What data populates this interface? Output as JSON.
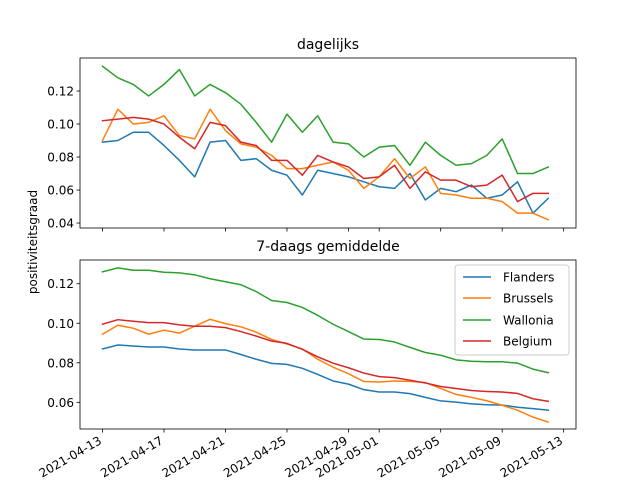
{
  "figure": {
    "ylabel": "positiviteitsgraad"
  },
  "chart_data": [
    {
      "type": "line",
      "title": "dagelijks",
      "xlabel": "",
      "ylabel": "",
      "x": [
        "2021-04-13",
        "2021-04-14",
        "2021-04-15",
        "2021-04-16",
        "2021-04-17",
        "2021-04-18",
        "2021-04-19",
        "2021-04-20",
        "2021-04-21",
        "2021-04-22",
        "2021-04-23",
        "2021-04-24",
        "2021-04-25",
        "2021-04-26",
        "2021-04-27",
        "2021-04-28",
        "2021-04-29",
        "2021-04-30",
        "2021-05-01",
        "2021-05-02",
        "2021-05-03",
        "2021-05-04",
        "2021-05-05",
        "2021-05-06",
        "2021-05-07",
        "2021-05-08",
        "2021-05-09",
        "2021-05-10",
        "2021-05-11",
        "2021-05-12"
      ],
      "ylim": [
        0.037,
        0.14
      ],
      "yticks": [
        0.04,
        0.06,
        0.08,
        0.1,
        0.12
      ],
      "ytick_labels": [
        "0.04",
        "0.06",
        "0.08",
        "0.10",
        "0.12"
      ],
      "grid": false,
      "series": [
        {
          "name": "Flanders",
          "color": "#1f77b4",
          "values": [
            0.089,
            0.09,
            0.095,
            0.095,
            0.087,
            0.078,
            0.068,
            0.089,
            0.09,
            0.078,
            0.079,
            0.072,
            0.069,
            0.057,
            0.072,
            0.07,
            0.068,
            0.065,
            0.062,
            0.061,
            0.07,
            0.054,
            0.061,
            0.059,
            0.063,
            0.055,
            0.057,
            0.065,
            0.046,
            0.055
          ]
        },
        {
          "name": "Brussels",
          "color": "#ff7f0e",
          "values": [
            0.09,
            0.109,
            0.1,
            0.101,
            0.105,
            0.093,
            0.091,
            0.109,
            0.096,
            0.088,
            0.086,
            0.081,
            0.073,
            0.073,
            0.075,
            0.077,
            0.072,
            0.061,
            0.068,
            0.079,
            0.067,
            0.074,
            0.058,
            0.057,
            0.055,
            0.055,
            0.053,
            0.046,
            0.046,
            0.042
          ]
        },
        {
          "name": "Wallonia",
          "color": "#2ca02c",
          "values": [
            0.135,
            0.128,
            0.124,
            0.117,
            0.124,
            0.133,
            0.117,
            0.124,
            0.119,
            0.112,
            0.101,
            0.089,
            0.106,
            0.095,
            0.105,
            0.089,
            0.088,
            0.08,
            0.086,
            0.087,
            0.075,
            0.089,
            0.081,
            0.075,
            0.076,
            0.081,
            0.091,
            0.07,
            0.07,
            0.074
          ]
        },
        {
          "name": "Belgium",
          "color": "#d62728",
          "values": [
            0.102,
            0.103,
            0.104,
            0.103,
            0.1,
            0.092,
            0.085,
            0.101,
            0.099,
            0.089,
            0.087,
            0.078,
            0.078,
            0.069,
            0.081,
            0.077,
            0.074,
            0.067,
            0.068,
            0.075,
            0.061,
            0.071,
            0.066,
            0.066,
            0.062,
            0.063,
            0.069,
            0.053,
            0.058,
            0.058
          ]
        }
      ]
    },
    {
      "type": "line",
      "title": "7-daags gemiddelde",
      "xlabel": "",
      "ylabel": "",
      "x": [
        "2021-04-13",
        "2021-04-14",
        "2021-04-15",
        "2021-04-16",
        "2021-04-17",
        "2021-04-18",
        "2021-04-19",
        "2021-04-20",
        "2021-04-21",
        "2021-04-22",
        "2021-04-23",
        "2021-04-24",
        "2021-04-25",
        "2021-04-26",
        "2021-04-27",
        "2021-04-28",
        "2021-04-29",
        "2021-04-30",
        "2021-05-01",
        "2021-05-02",
        "2021-05-03",
        "2021-05-04",
        "2021-05-05",
        "2021-05-06",
        "2021-05-07",
        "2021-05-08",
        "2021-05-09",
        "2021-05-10",
        "2021-05-11",
        "2021-05-12"
      ],
      "ylim": [
        0.0465,
        0.132
      ],
      "yticks": [
        0.06,
        0.08,
        0.1,
        0.12
      ],
      "ytick_labels": [
        "0.06",
        "0.08",
        "0.10",
        "0.12"
      ],
      "xticks": [
        "2021-04-13",
        "2021-04-17",
        "2021-04-21",
        "2021-04-25",
        "2021-04-29",
        "2021-05-01",
        "2021-05-05",
        "2021-05-09",
        "2021-05-13"
      ],
      "xtick_labels": [
        "2021-04-13",
        "2021-04-17",
        "2021-04-21",
        "2021-04-25",
        "2021-04-29",
        "2021-05-01",
        "2021-05-05",
        "2021-05-09",
        "2021-05-13"
      ],
      "legend": "upper right",
      "grid": false,
      "series": [
        {
          "name": "Flanders",
          "color": "#1f77b4",
          "values": [
            0.087,
            0.089,
            0.0885,
            0.088,
            0.088,
            0.087,
            0.0865,
            0.0865,
            0.0865,
            0.0842,
            0.0818,
            0.0797,
            0.0792,
            0.0772,
            0.0741,
            0.0708,
            0.0692,
            0.0664,
            0.0652,
            0.0652,
            0.0644,
            0.0625,
            0.0607,
            0.0601,
            0.0592,
            0.0588,
            0.0586,
            0.0575,
            0.0568,
            0.056
          ]
        },
        {
          "name": "Brussels",
          "color": "#ff7f0e",
          "values": [
            0.0945,
            0.099,
            0.0975,
            0.0945,
            0.0965,
            0.095,
            0.0985,
            0.102,
            0.0998,
            0.0982,
            0.0955,
            0.0918,
            0.0895,
            0.087,
            0.0818,
            0.0778,
            0.0745,
            0.0705,
            0.0703,
            0.0708,
            0.0706,
            0.07,
            0.067,
            0.064,
            0.0625,
            0.0608,
            0.0585,
            0.056,
            0.0525,
            0.05
          ]
        },
        {
          "name": "Wallonia",
          "color": "#2ca02c",
          "values": [
            0.126,
            0.128,
            0.1268,
            0.1268,
            0.1258,
            0.1255,
            0.1245,
            0.1225,
            0.121,
            0.1195,
            0.116,
            0.1115,
            0.1105,
            0.108,
            0.104,
            0.0995,
            0.0958,
            0.092,
            0.0918,
            0.0905,
            0.0878,
            0.0852,
            0.0838,
            0.0815,
            0.0808,
            0.0805,
            0.0805,
            0.0798,
            0.0768,
            0.075
          ]
        },
        {
          "name": "Belgium",
          "color": "#d62728",
          "values": [
            0.0995,
            0.1018,
            0.101,
            0.1003,
            0.1003,
            0.0992,
            0.0985,
            0.0985,
            0.0978,
            0.0958,
            0.0935,
            0.091,
            0.0898,
            0.0868,
            0.083,
            0.0798,
            0.0775,
            0.0748,
            0.073,
            0.0725,
            0.0712,
            0.0698,
            0.068,
            0.067,
            0.066,
            0.0655,
            0.0652,
            0.0645,
            0.0618,
            0.0605
          ]
        }
      ]
    }
  ]
}
